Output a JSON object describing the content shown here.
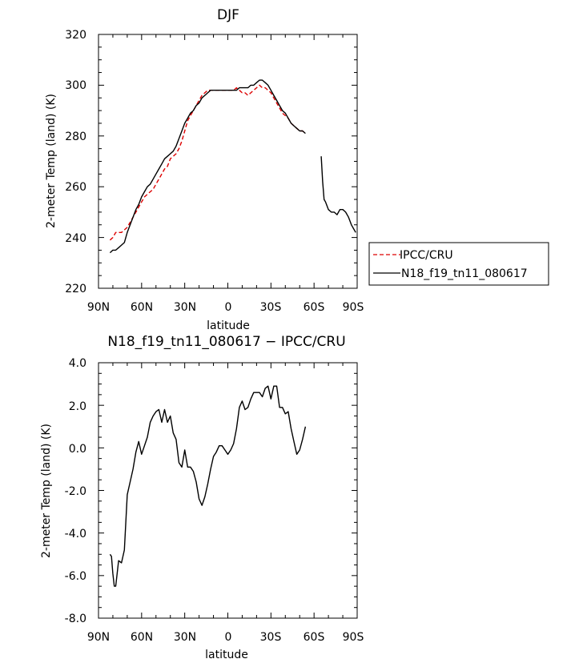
{
  "chart_data": [
    {
      "type": "line",
      "title": "DJF",
      "xlabel": "latitude",
      "ylabel": "2-meter Temp (land) (K)",
      "xlim": [
        -90,
        90
      ],
      "ylim": [
        220,
        320
      ],
      "x_tick_labels": [
        "90N",
        "60N",
        "30N",
        "0",
        "30S",
        "60S",
        "90S"
      ],
      "y_ticks": [
        220,
        240,
        260,
        280,
        300,
        320
      ],
      "legend_position": "right",
      "series": [
        {
          "name": "IPCC/CRU",
          "color": "#dd0000",
          "style": "dashed",
          "segments": [
            {
              "x": [
                -82,
                -80,
                -78,
                -76,
                -74,
                -72,
                -70,
                -68,
                -66,
                -64,
                -62,
                -60,
                -58,
                -56,
                -54,
                -52,
                -50,
                -48,
                -46,
                -44,
                -42,
                -40,
                -38,
                -36,
                -34,
                -32,
                -30,
                -28,
                -26,
                -24,
                -22,
                -20,
                -18,
                -16,
                -14,
                -12,
                -10,
                -8,
                -6,
                -4,
                -2,
                0,
                2,
                4,
                6,
                8,
                10,
                12,
                14,
                16,
                18,
                20,
                22,
                24,
                26,
                28,
                30,
                32,
                34,
                36,
                38,
                40,
                42,
                44,
                46,
                48,
                50,
                52,
                54
              ],
              "y": [
                239,
                240,
                242,
                242,
                242,
                243,
                244,
                246,
                248,
                250,
                252,
                254,
                256,
                257,
                258,
                259,
                261,
                263,
                265,
                267,
                268,
                271,
                272,
                273,
                275,
                278,
                282,
                286,
                288,
                290,
                292,
                294,
                296,
                297,
                298,
                298,
                298,
                298,
                298,
                298,
                298,
                298,
                298,
                298,
                299,
                298,
                297,
                297,
                296,
                297,
                298,
                299,
                300,
                299,
                299,
                298,
                297,
                295,
                293,
                291,
                289,
                288,
                287,
                285,
                284,
                283,
                282,
                282,
                281
              ]
            }
          ]
        },
        {
          "name": "N18_f19_tn11_080617",
          "color": "#000000",
          "style": "solid",
          "segments": [
            {
              "x": [
                -82,
                -80,
                -78,
                -76,
                -74,
                -72,
                -70,
                -68,
                -66,
                -64,
                -62,
                -60,
                -58,
                -56,
                -54,
                -52,
                -50,
                -48,
                -46,
                -44,
                -42,
                -40,
                -38,
                -36,
                -34,
                -32,
                -30,
                -28,
                -26,
                -24,
                -22,
                -20,
                -18,
                -16,
                -14,
                -12,
                -10,
                -8,
                -6,
                -4,
                -2,
                0,
                2,
                4,
                6,
                8,
                10,
                12,
                14,
                16,
                18,
                20,
                22,
                24,
                26,
                28,
                30,
                32,
                34,
                36,
                38,
                40,
                42,
                44,
                46,
                48,
                50,
                52,
                54
              ],
              "y": [
                234,
                235,
                235,
                236,
                237,
                238,
                242,
                245,
                248,
                251,
                253,
                256,
                258,
                260,
                261,
                263,
                265,
                267,
                269,
                271,
                272,
                273,
                274,
                276,
                279,
                282,
                285,
                287,
                289,
                290,
                292,
                293,
                295,
                296,
                297,
                298,
                298,
                298,
                298,
                298,
                298,
                298,
                298,
                298,
                298,
                299,
                299,
                299,
                299,
                300,
                300,
                301,
                302,
                302,
                301,
                300,
                298,
                296,
                294,
                292,
                290,
                289,
                287,
                285,
                284,
                283,
                282,
                282,
                281
              ]
            },
            {
              "x": [
                65,
                66,
                67,
                68,
                70,
                72,
                74,
                76,
                78,
                80,
                82,
                84,
                86,
                88,
                89
              ],
              "y": [
                272,
                262,
                255,
                254,
                251,
                250,
                250,
                249,
                251,
                251,
                250,
                248,
                245,
                243,
                242
              ]
            }
          ]
        }
      ]
    },
    {
      "type": "line",
      "title": "N18_f19_tn11_080617 − IPCC/CRU",
      "xlabel": "latitude",
      "ylabel": "2-meter Temp (land) (K)",
      "xlim": [
        -90,
        90
      ],
      "ylim": [
        -8,
        4
      ],
      "x_tick_labels": [
        "90N",
        "60N",
        "30N",
        "0",
        "30S",
        "60S",
        "90S"
      ],
      "y_tick_labels": [
        "-8.0",
        "-6.0",
        "-4.0",
        "-2.0",
        "0.0",
        "2.0",
        "4.0"
      ],
      "y_ticks": [
        -8,
        -6,
        -4,
        -2,
        0,
        2,
        4
      ],
      "series": [
        {
          "color": "#000000",
          "style": "solid",
          "segments": [
            {
              "x": [
                -82,
                -81,
                -80,
                -79,
                -78,
                -77,
                -76,
                -74,
                -72,
                -70,
                -68,
                -66,
                -64,
                -62,
                -60,
                -58,
                -56,
                -54,
                -52,
                -50,
                -48,
                -46,
                -44,
                -42,
                -40,
                -38,
                -36,
                -34,
                -32,
                -30,
                -28,
                -26,
                -24,
                -22,
                -20,
                -18,
                -16,
                -14,
                -12,
                -10,
                -8,
                -6,
                -4,
                -2,
                0,
                2,
                4,
                6,
                8,
                10,
                12,
                14,
                16,
                18,
                20,
                22,
                24,
                26,
                28,
                30,
                32,
                34,
                36,
                38,
                40,
                42,
                44,
                46,
                48,
                50,
                52,
                54
              ],
              "y": [
                -5.0,
                -5.1,
                -5.9,
                -6.5,
                -6.5,
                -5.9,
                -5.3,
                -5.4,
                -4.8,
                -2.2,
                -1.6,
                -1.0,
                -0.2,
                0.3,
                -0.3,
                0.1,
                0.5,
                1.2,
                1.5,
                1.7,
                1.8,
                1.2,
                1.8,
                1.2,
                1.5,
                0.7,
                0.4,
                -0.7,
                -0.9,
                -0.1,
                -0.9,
                -0.9,
                -1.1,
                -1.6,
                -2.4,
                -2.7,
                -2.3,
                -1.7,
                -1.0,
                -0.4,
                -0.2,
                0.1,
                0.1,
                -0.1,
                -0.3,
                -0.1,
                0.2,
                0.9,
                1.9,
                2.2,
                1.8,
                1.9,
                2.3,
                2.6,
                2.6,
                2.6,
                2.4,
                2.8,
                2.9,
                2.3,
                2.9,
                2.9,
                1.9,
                1.9,
                1.6,
                1.7,
                0.9,
                0.3,
                -0.3,
                -0.1,
                0.4,
                1.0
              ]
            }
          ]
        }
      ]
    }
  ]
}
